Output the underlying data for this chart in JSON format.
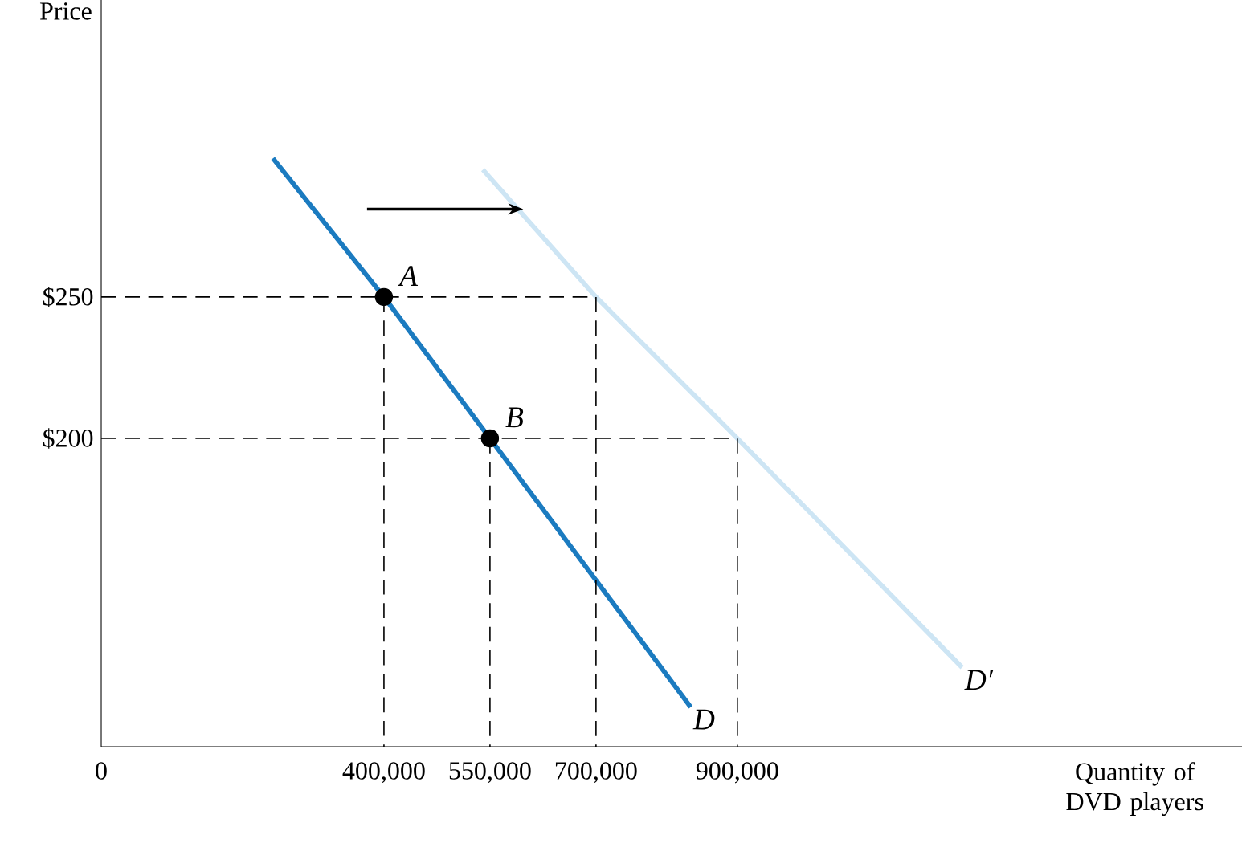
{
  "chart_data": {
    "type": "line",
    "xlabel": "Quantity of DVD players",
    "ylabel": "Price",
    "xlim": [
      0,
      1614000
    ],
    "ylim": [
      91,
      355
    ],
    "xticks": [
      {
        "value": 0,
        "label": "0"
      },
      {
        "value": 400000,
        "label": "400,000"
      },
      {
        "value": 550000,
        "label": "550,000"
      },
      {
        "value": 700000,
        "label": "700,000"
      },
      {
        "value": 900000,
        "label": "900,000"
      }
    ],
    "yticks": [
      {
        "value": 250,
        "label": "$250"
      },
      {
        "value": 200,
        "label": "$200"
      }
    ],
    "grid": false,
    "series": [
      {
        "name": "D",
        "color": "#1b7bc0",
        "x": [
          243000,
          400000,
          550000,
          834000
        ],
        "values": [
          299,
          250,
          200,
          105
        ]
      },
      {
        "name": "D′",
        "color": "#cde5f4",
        "x": [
          540000,
          700000,
          900000,
          1218000
        ],
        "values": [
          295,
          250,
          200,
          119
        ]
      },
      {
        "color": "#000000",
        "line_style": "dashed",
        "x": [
          0,
          700000,
          700000
        ],
        "values": [
          250,
          250,
          91
        ]
      },
      {
        "color": "#000000",
        "line_style": "dashed",
        "x": [
          400000,
          400000
        ],
        "values": [
          250,
          91
        ]
      },
      {
        "color": "#000000",
        "line_style": "dashed",
        "x": [
          0,
          900000,
          900000
        ],
        "values": [
          200,
          200,
          91
        ]
      },
      {
        "color": "#000000",
        "line_style": "dashed",
        "x": [
          550000,
          550000
        ],
        "values": [
          200,
          91
        ]
      },
      {
        "type": "scatter",
        "marker": "circle",
        "color": "#000000",
        "x": [
          400000,
          550000
        ],
        "values": [
          250,
          200
        ]
      }
    ],
    "annotations": [
      {
        "text": "A",
        "x": 400000,
        "y": 250
      },
      {
        "text": "B",
        "x": 550000,
        "y": 200
      }
    ]
  }
}
